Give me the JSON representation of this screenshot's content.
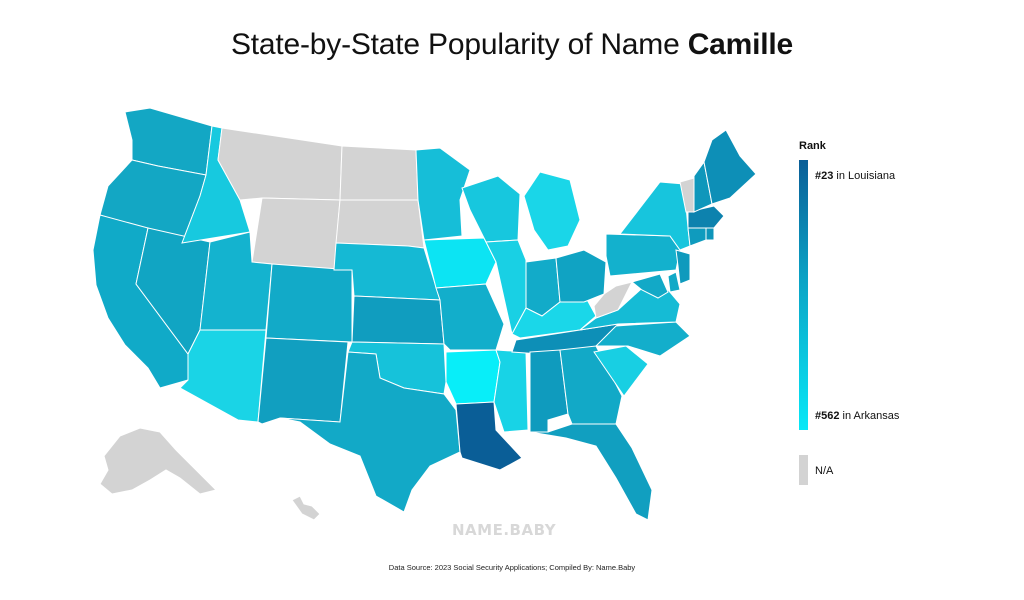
{
  "title": {
    "prefix": "State-by-State Popularity of Name ",
    "name": "Camille"
  },
  "legend": {
    "heading": "Rank",
    "top_rank": "#23",
    "top_state": " in Louisiana",
    "bottom_rank": "#562",
    "bottom_state": " in Arkansas",
    "na_label": "N/A",
    "colors": {
      "top": "#0a5e97",
      "bottom": "#08e8f7",
      "na": "#d3d3d3"
    }
  },
  "watermark": "NAME.BABY",
  "source": "Data Source: 2023 Social Security Applications; Compiled By: Name.Baby",
  "states": [
    {
      "id": "WA",
      "color": "#13a7c4"
    },
    {
      "id": "OR",
      "color": "#13a7c4"
    },
    {
      "id": "CA",
      "color": "#10aac8"
    },
    {
      "id": "NV",
      "color": "#11a5c3"
    },
    {
      "id": "ID",
      "color": "#17c9df"
    },
    {
      "id": "MT",
      "color": "#d3d3d3"
    },
    {
      "id": "WY",
      "color": "#d3d3d3"
    },
    {
      "id": "UT",
      "color": "#14b3cf"
    },
    {
      "id": "AZ",
      "color": "#1ad4e6"
    },
    {
      "id": "CO",
      "color": "#12aac8"
    },
    {
      "id": "NM",
      "color": "#119fc0"
    },
    {
      "id": "ND",
      "color": "#d3d3d3"
    },
    {
      "id": "SD",
      "color": "#d3d3d3"
    },
    {
      "id": "NE",
      "color": "#15b9d4"
    },
    {
      "id": "KS",
      "color": "#109dbf"
    },
    {
      "id": "OK",
      "color": "#16c2da"
    },
    {
      "id": "TX",
      "color": "#12a9c7"
    },
    {
      "id": "MN",
      "color": "#16bed8"
    },
    {
      "id": "IA",
      "color": "#0ce4f3"
    },
    {
      "id": "MO",
      "color": "#12aecb"
    },
    {
      "id": "AR",
      "color": "#08eef9"
    },
    {
      "id": "LA",
      "color": "#0a5e97"
    },
    {
      "id": "WI",
      "color": "#17c7de"
    },
    {
      "id": "IL",
      "color": "#19d0e4"
    },
    {
      "id": "MS",
      "color": "#18d3e6"
    },
    {
      "id": "MI",
      "color": "#1ad6e8"
    },
    {
      "id": "IN",
      "color": "#12abc9"
    },
    {
      "id": "KY",
      "color": "#1ad7e9"
    },
    {
      "id": "TN",
      "color": "#0d8fb7"
    },
    {
      "id": "AL",
      "color": "#0f9bbe"
    },
    {
      "id": "OH",
      "color": "#10a3c3"
    },
    {
      "id": "GA",
      "color": "#12a9c7"
    },
    {
      "id": "FL",
      "color": "#119fc0"
    },
    {
      "id": "SC",
      "color": "#18cfe3"
    },
    {
      "id": "NC",
      "color": "#13aecb"
    },
    {
      "id": "VA",
      "color": "#15bbd5"
    },
    {
      "id": "WV",
      "color": "#d3d3d3"
    },
    {
      "id": "PA",
      "color": "#13b1cd"
    },
    {
      "id": "NY",
      "color": "#17c5dd"
    },
    {
      "id": "MD",
      "color": "#12a9c7"
    },
    {
      "id": "DE",
      "color": "#12a9c7"
    },
    {
      "id": "NJ",
      "color": "#0f9abd"
    },
    {
      "id": "CT",
      "color": "#0f9bbe"
    },
    {
      "id": "RI",
      "color": "#0e95ba"
    },
    {
      "id": "MA",
      "color": "#0d82ae"
    },
    {
      "id": "VT",
      "color": "#d3d3d3"
    },
    {
      "id": "NH",
      "color": "#0f97bb"
    },
    {
      "id": "ME",
      "color": "#0d8fb7"
    },
    {
      "id": "AK",
      "color": "#d3d3d3"
    },
    {
      "id": "HI",
      "color": "#d3d3d3"
    }
  ]
}
